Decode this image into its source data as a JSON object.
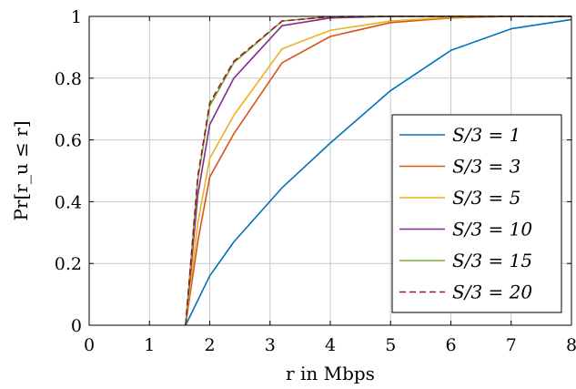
{
  "chart_data": {
    "type": "line",
    "title": "",
    "xlabel": "r in Mbps",
    "ylabel": "Pr[r_u ≤ r]",
    "xlim": [
      0,
      8
    ],
    "ylim": [
      0,
      1
    ],
    "xticks": [
      "0",
      "1",
      "2",
      "3",
      "4",
      "5",
      "6",
      "7",
      "8"
    ],
    "yticks": [
      "0",
      "0.2",
      "0.4",
      "0.6",
      "0.8",
      "1"
    ],
    "grid": true,
    "legend_position": "bottom-right",
    "series": [
      {
        "name": "S/3 = 1",
        "color": "#0072BD",
        "dash": "solid",
        "x": [
          1.6,
          2.0,
          2.4,
          3.2,
          4.0,
          5.0,
          6.0,
          7.0,
          8.0
        ],
        "y": [
          0.0,
          0.16,
          0.27,
          0.445,
          0.59,
          0.76,
          0.89,
          0.96,
          0.99
        ]
      },
      {
        "name": "S/3 = 3",
        "color": "#D95319",
        "dash": "solid",
        "x": [
          1.6,
          1.8,
          2.0,
          2.4,
          3.2,
          4.0,
          5.0,
          6.0,
          7.0,
          8.0
        ],
        "y": [
          0.0,
          0.27,
          0.48,
          0.62,
          0.85,
          0.935,
          0.98,
          0.995,
          1.0,
          1.0
        ]
      },
      {
        "name": "S/3 = 5",
        "color": "#EDB120",
        "dash": "solid",
        "x": [
          1.6,
          1.8,
          2.0,
          2.4,
          3.2,
          4.0,
          5.0,
          6.0,
          7.0,
          8.0
        ],
        "y": [
          0.0,
          0.33,
          0.54,
          0.68,
          0.895,
          0.955,
          0.985,
          0.997,
          1.0,
          1.0
        ]
      },
      {
        "name": "S/3 = 10",
        "color": "#7E2F8E",
        "dash": "solid",
        "x": [
          1.6,
          1.8,
          2.0,
          2.4,
          3.2,
          4.0,
          5.0,
          6.0,
          7.0,
          8.0
        ],
        "y": [
          0.0,
          0.42,
          0.65,
          0.8,
          0.97,
          0.995,
          1.0,
          1.0,
          1.0,
          1.0
        ]
      },
      {
        "name": "S/3 = 15",
        "color": "#77AC30",
        "dash": "solid",
        "x": [
          1.6,
          1.8,
          2.0,
          2.4,
          3.2,
          4.0,
          5.0,
          6.0,
          7.0,
          8.0
        ],
        "y": [
          0.0,
          0.47,
          0.71,
          0.85,
          0.985,
          0.999,
          1.0,
          1.0,
          1.0,
          1.0
        ]
      },
      {
        "name": "S/3 = 20",
        "color": "#A2142F",
        "dash": "dashed",
        "x": [
          1.6,
          1.8,
          2.0,
          2.4,
          3.2,
          4.0,
          5.0,
          6.0,
          7.0,
          8.0
        ],
        "y": [
          0.0,
          0.48,
          0.72,
          0.855,
          0.985,
          0.999,
          1.0,
          1.0,
          1.0,
          1.0
        ]
      }
    ]
  }
}
